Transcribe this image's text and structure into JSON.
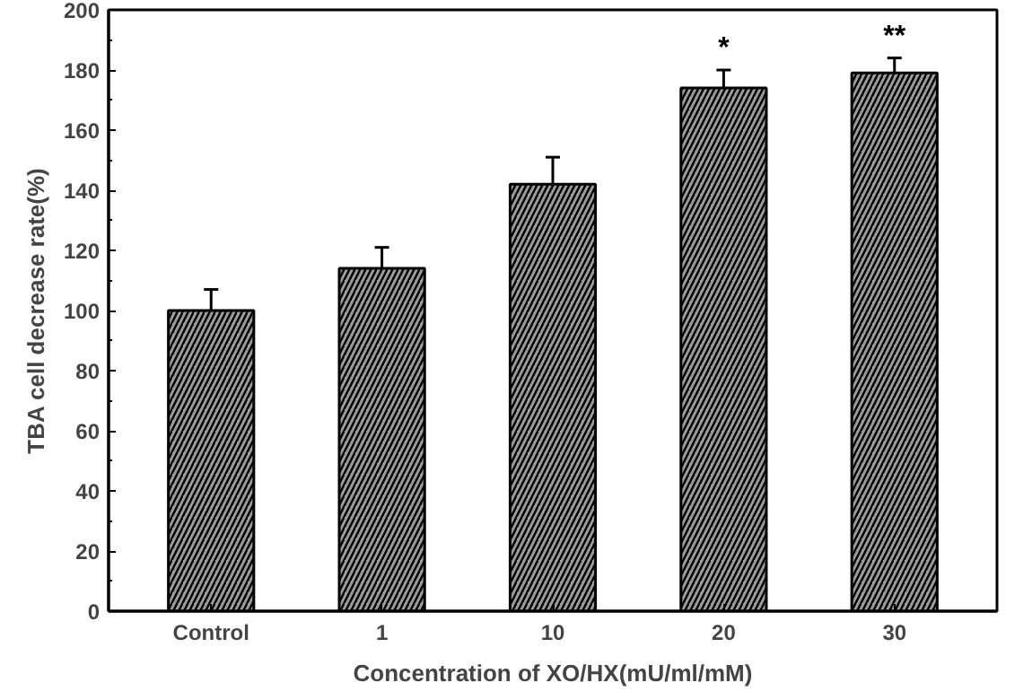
{
  "chart_data": {
    "type": "bar",
    "xlabel": "Concentration of XO/HX(mU/ml/mM)",
    "ylabel": "TBA cell decrease rate(%)",
    "categories": [
      "Control",
      "1",
      "10",
      "20",
      "30"
    ],
    "values": [
      100,
      114,
      142,
      174,
      179
    ],
    "errors": [
      7,
      7,
      9,
      6,
      5
    ],
    "color": "#9a9a9a",
    "ylim": [
      0,
      200
    ],
    "yticks": [
      0,
      20,
      40,
      60,
      80,
      100,
      120,
      140,
      160,
      180,
      200
    ],
    "grid": false,
    "annotations": [
      {
        "text": "*",
        "x": "20",
        "y": 180
      },
      {
        "text": "**",
        "x": "30",
        "y": 184
      }
    ]
  }
}
